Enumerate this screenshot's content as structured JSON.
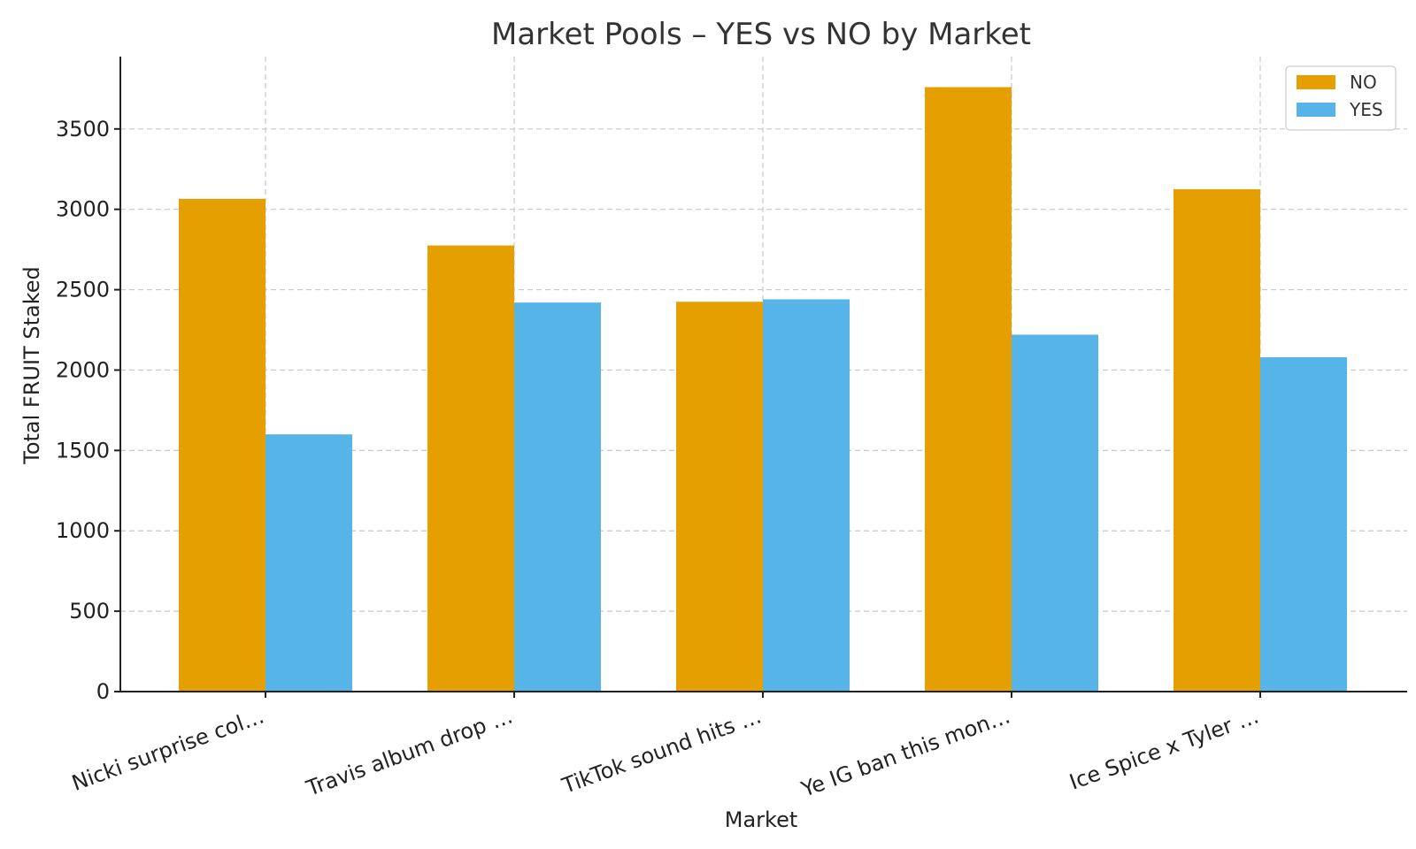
{
  "chart_data": {
    "type": "bar",
    "title": "Market Pools – YES vs NO by Market",
    "xlabel": "Market",
    "ylabel": "Total FRUIT Staked",
    "categories": [
      "Nicki surprise col…",
      "Travis album drop …",
      "TikTok sound hits …",
      "Ye IG ban this mon…",
      "Ice Spice x Tyler …"
    ],
    "series": [
      {
        "name": "NO",
        "color": "#E69F00",
        "values": [
          3065,
          2775,
          2425,
          3760,
          3125
        ]
      },
      {
        "name": "YES",
        "color": "#56B4E9",
        "values": [
          1600,
          2420,
          2440,
          2220,
          2080
        ]
      }
    ],
    "yticks": [
      0,
      500,
      1000,
      1500,
      2000,
      2500,
      3000,
      3500
    ],
    "ylim": [
      0,
      3950
    ],
    "grid": true,
    "legend_position": "top-right"
  }
}
